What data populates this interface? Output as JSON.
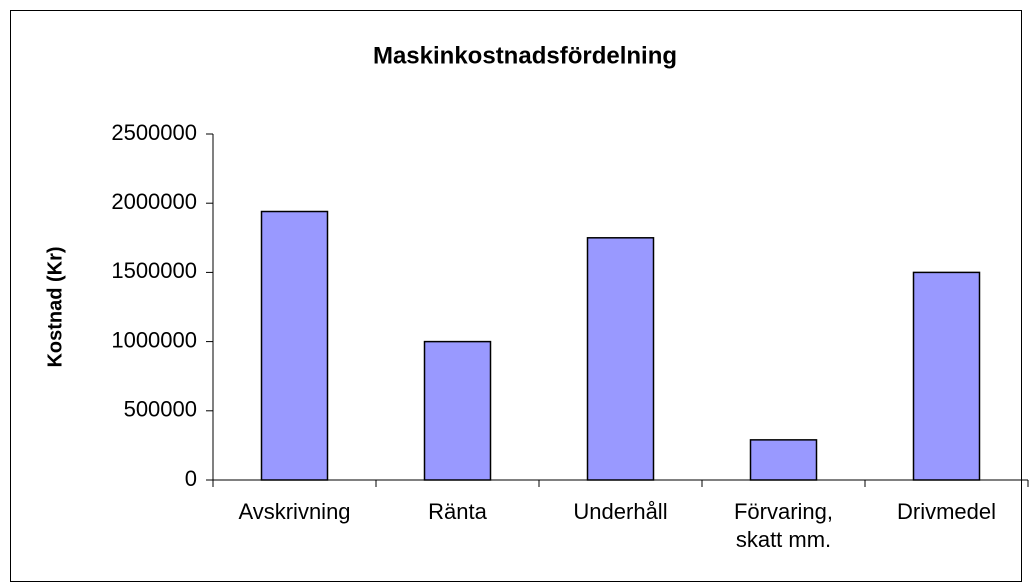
{
  "chart_data": {
    "type": "bar",
    "title": "Maskinkostnadsfördelning",
    "ylabel": "Kostnad (Kr)",
    "categories": [
      "Avskrivning",
      "Ränta",
      "Underhåll",
      "Förvaring, skatt mm.",
      "Drivmedel"
    ],
    "values": [
      1940000,
      1000000,
      1750000,
      290000,
      1500000
    ],
    "color": "#9999ff",
    "ylim": [
      0,
      2500000
    ],
    "yticks": [
      0,
      500000,
      1000000,
      1500000,
      2000000,
      2500000
    ],
    "grid": false
  }
}
